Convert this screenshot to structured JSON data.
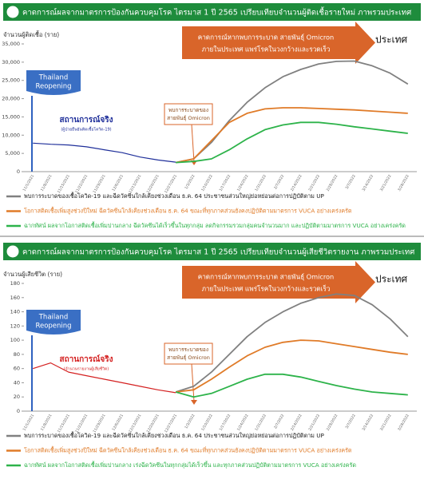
{
  "chart_data": [
    {
      "type": "line",
      "title": "คาดการณ์ผลจากมาตรการป้องกันควบคุมโรค ไตรมาส 1 ปี 2565 เปรียบเทียบจำนวนผู้ติดเชื้อรายใหม่ ภาพรวมประเทศ",
      "y_label": "จำนวนผู้ติดเชื้อ (ราย)",
      "arrow_text": [
        "คาดการณ์หากพบการระบาด สายพันธุ์ Omicron",
        "ภายในประเทศ แพร่โรคในวงกว้างและรวดเร็ว"
      ],
      "region": "ประเทศ",
      "badge": [
        "Thailand",
        "Reopening"
      ],
      "callout": [
        "พบการระบาดของ",
        "สายพันธุ์ Omicron"
      ],
      "categories": [
        "11/1/2021",
        "11/8/2021",
        "11/15/2021",
        "11/22/2021",
        "11/29/2021",
        "12/6/2021",
        "12/13/2021",
        "12/20/2021",
        "12/27/2021",
        "1/3/2022",
        "1/10/2022",
        "1/17/2022",
        "1/24/2022",
        "1/31/2022",
        "2/7/2022",
        "2/14/2022",
        "2/21/2022",
        "2/28/2022",
        "3/7/2022",
        "3/14/2022",
        "3/21/2022",
        "3/28/2022"
      ],
      "ylim": [
        0,
        35000
      ],
      "yticks": [
        0,
        {
          "value": 5000,
          "label": "5,000"
        },
        {
          "value": 10000,
          "label": "10,000"
        },
        {
          "value": 15000,
          "label": "15,000"
        },
        {
          "value": 20000,
          "label": "20,000"
        },
        {
          "value": 25000,
          "label": "25,000"
        },
        {
          "value": 30000,
          "label": "30,000"
        },
        {
          "value": 35000,
          "label": "35,000"
        }
      ],
      "actual": {
        "label": "สถานการณ์จริง",
        "sublabel": "(ผู้ป่วยยืนยันติดเชื้อโควิด-19)",
        "color": "#1f2f9a",
        "values": [
          7800,
          7500,
          7300,
          6800,
          6000,
          5200,
          4000,
          3200,
          2600,
          null,
          null,
          null,
          null,
          null,
          null,
          null,
          null,
          null,
          null,
          null,
          null,
          null
        ]
      },
      "series": [
        {
          "name": "พบการระบาดของเชื้อโควิด-19 และฉีดวัคซีนใกล้เคียงช่วงเดือน ธ.ค. 64 ประชาชนส่วนใหญ่ย่อหย่อนต่อการปฏิบัติตาม UP",
          "color": "#808080",
          "values": [
            null,
            null,
            null,
            null,
            null,
            null,
            null,
            null,
            2500,
            3500,
            8000,
            14000,
            19000,
            23000,
            26000,
            28000,
            29500,
            30200,
            30300,
            29000,
            27000,
            24000
          ]
        },
        {
          "name": "โอกาสติดเชื้อเพิ่มสูงช่วงปีใหม่ ฉีดวัคซีนใกล้เคียงช่วงเดือน ธ.ค. 64 ขณะที่ทุกภาคส่วนยังคงปฏิบัติตามมาตรการ VUCA อย่างเคร่งครัด",
          "color": "#e07b28",
          "values": [
            null,
            null,
            null,
            null,
            null,
            null,
            null,
            null,
            2500,
            3500,
            8500,
            13500,
            16000,
            17200,
            17500,
            17500,
            17300,
            17100,
            16900,
            16600,
            16300,
            16000
          ]
        },
        {
          "name": "ฉากทัศน์ ผลจากโอกาสติดเชื้อเพิ่มปานกลาง ฉีดวัคซีนได้เร็วขึ้นในทุกกลุ่ม ลดกิจกรรมรวมกลุ่มคนจำนวนมาก และปฏิบัติตามมาตรการ VUCA อย่างเคร่งครัด",
          "color": "#2db34a",
          "values": [
            null,
            null,
            null,
            null,
            null,
            null,
            null,
            null,
            2500,
            2800,
            3500,
            6000,
            9000,
            11500,
            12800,
            13500,
            13500,
            13000,
            12300,
            11700,
            11100,
            10500
          ]
        }
      ]
    },
    {
      "type": "line",
      "title": "คาดการณ์ผลจากมาตรการป้องกันควบคุมโรค ไตรมาส 1 ปี 2565 เปรียบเทียบจำนวนผู้เสียชีวิตรายงาน ภาพรวมประเทศ",
      "y_label": "จำนวนผู้เสียชีวิต (ราย)",
      "arrow_text": [
        "คาดการณ์หากพบการระบาด สายพันธุ์ Omicron",
        "ภายในประเทศ แพร่โรคในวงกว้างและรวดเร็ว"
      ],
      "region": "ประเทศ",
      "badge": [
        "Thailand",
        "Reopening"
      ],
      "callout": [
        "พบการระบาดของ",
        "สายพันธุ์ Omicron"
      ],
      "categories": [
        "11/1/2021",
        "11/8/2021",
        "11/15/2021",
        "11/22/2021",
        "11/29/2021",
        "12/6/2021",
        "12/13/2021",
        "12/20/2021",
        "12/27/2021",
        "1/3/2022",
        "1/10/2022",
        "1/17/2022",
        "1/24/2022",
        "1/31/2022",
        "2/7/2022",
        "2/14/2022",
        "2/21/2022",
        "2/28/2022",
        "3/7/2022",
        "3/14/2022",
        "3/21/2022",
        "3/28/2022"
      ],
      "ylim": [
        0,
        180
      ],
      "yticks": [
        0,
        20,
        40,
        60,
        80,
        100,
        120,
        140,
        160,
        180
      ],
      "actual": {
        "label": "สถานการณ์จริง",
        "sublabel": "(จำนวนรายงานผู้เสียชีวิต)",
        "color": "#d42020",
        "values": [
          60,
          68,
          55,
          50,
          45,
          40,
          35,
          30,
          26,
          null,
          null,
          null,
          null,
          null,
          null,
          null,
          null,
          null,
          null,
          null,
          null,
          null
        ]
      },
      "series": [
        {
          "name": "พบการระบาดของเชื้อโควิด-19 และฉีดวัคซีนใกล้เคียงช่วงเดือน ธ.ค. 64 ประชาชนส่วนใหญ่ย่อหย่อนต่อการปฏิบัติตาม UP",
          "color": "#808080",
          "values": [
            null,
            null,
            null,
            null,
            null,
            null,
            null,
            null,
            27,
            35,
            55,
            80,
            105,
            125,
            140,
            152,
            160,
            165,
            163,
            150,
            130,
            105
          ]
        },
        {
          "name": "โอกาสติดเชื้อเพิ่มสูงช่วงปีใหม่ ฉีดวัคซีนใกล้เคียงช่วงเดือน ธ.ค. 64 ขณะที่ทุกภาคส่วนยังคงปฏิบัติตามมาตรการ VUCA อย่างเคร่งครัด",
          "color": "#e07b28",
          "values": [
            null,
            null,
            null,
            null,
            null,
            null,
            null,
            null,
            27,
            30,
            45,
            62,
            78,
            90,
            97,
            100,
            99,
            95,
            91,
            87,
            83,
            80
          ]
        },
        {
          "name": "ฉากทัศน์ ผลจากโอกาสติดเชื้อเพิ่มปานกลาง เร่งฉีดวัคซีนในทุกกลุ่มได้เร็วขึ้น และทุกภาคส่วนปฏิบัติตามมาตรการ VUCA อย่างเคร่งครัด",
          "color": "#2db34a",
          "values": [
            null,
            null,
            null,
            null,
            null,
            null,
            null,
            null,
            27,
            20,
            25,
            35,
            45,
            52,
            52,
            48,
            42,
            36,
            31,
            27,
            25,
            23
          ]
        }
      ]
    }
  ]
}
